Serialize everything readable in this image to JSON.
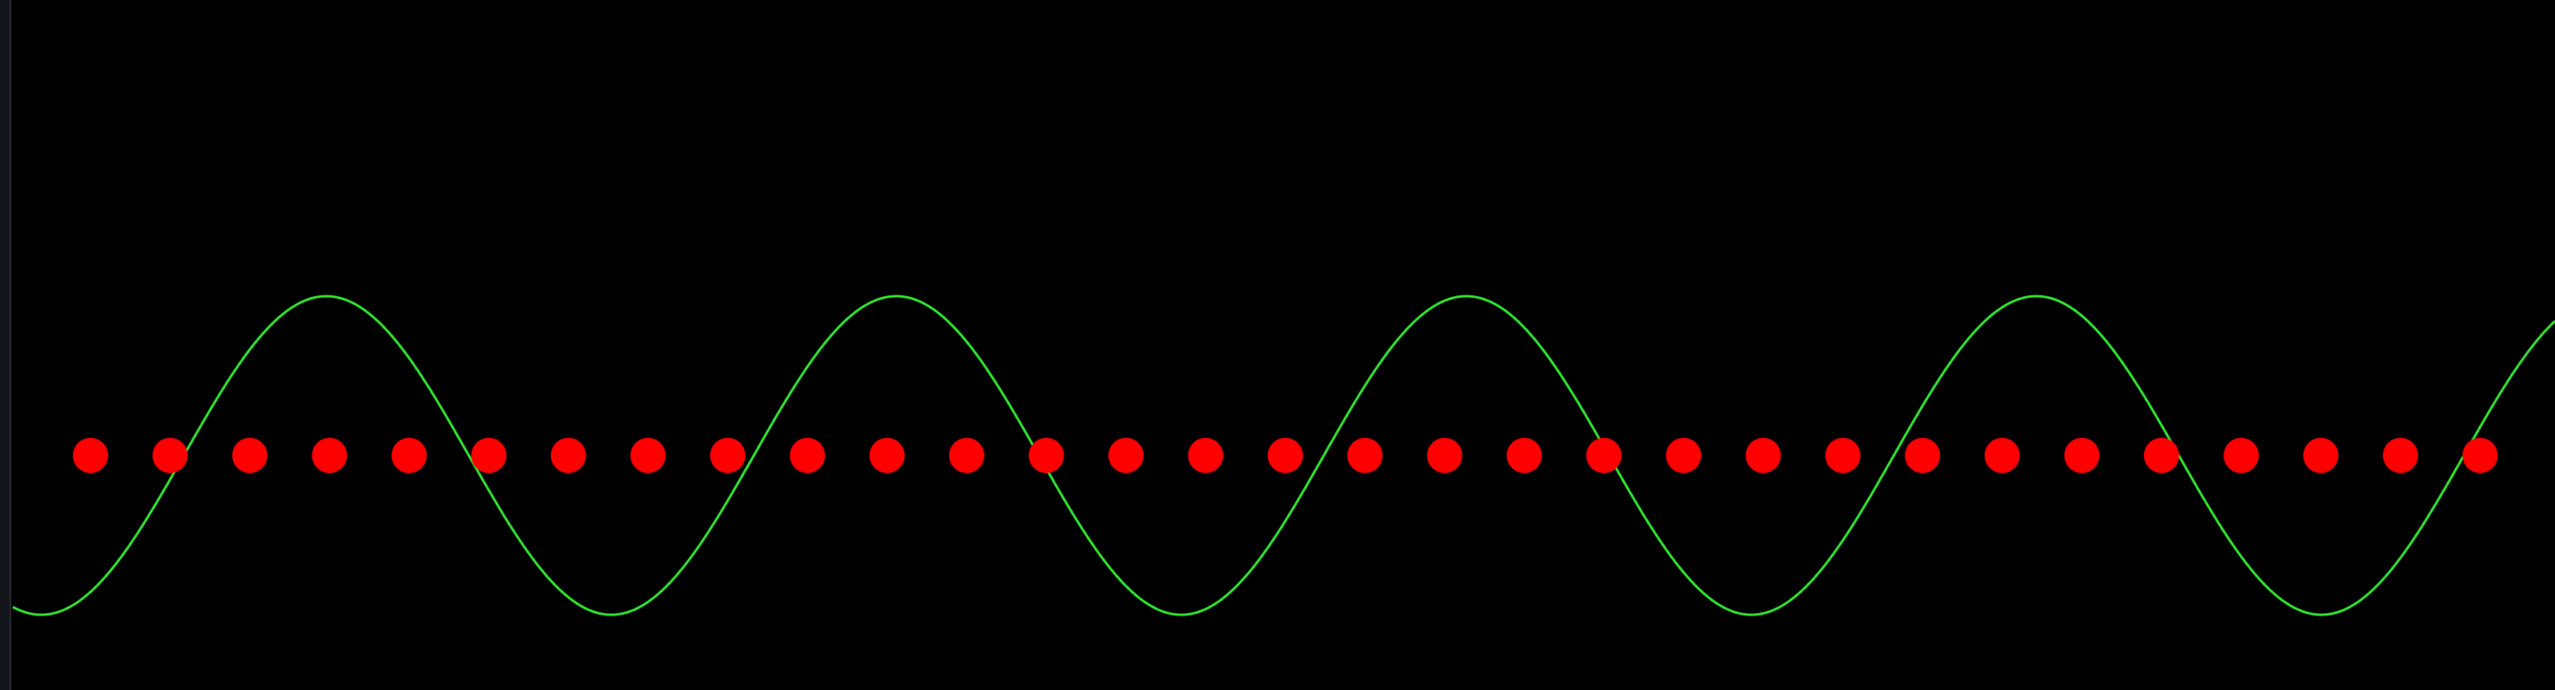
{
  "chart_data": {
    "type": "line",
    "title": "",
    "xlabel": "",
    "ylabel": "",
    "grid": false,
    "background_color": "#000000",
    "series": [
      {
        "kind": "curve",
        "color": "#33ee33",
        "function": "sine",
        "amplitude": 1.0,
        "cycles": 4.46,
        "phase": -0.3
      },
      {
        "kind": "markers",
        "color": "#ff0000",
        "y": 0.0,
        "count": 31
      }
    ],
    "xlim": [
      0,
      4.46
    ],
    "ylim": [
      -1.6,
      3.9
    ]
  }
}
